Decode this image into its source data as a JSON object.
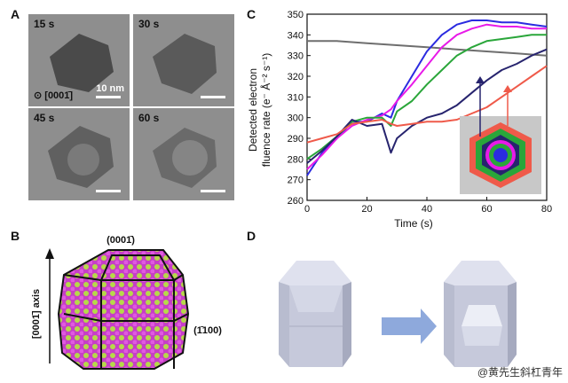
{
  "panels": {
    "a": {
      "label": "A",
      "frames": [
        {
          "time": "15 s"
        },
        {
          "time": "30 s"
        },
        {
          "time": "45 s"
        },
        {
          "time": "60 s"
        }
      ],
      "scale_bar": "10 nm",
      "zone_axis": "[0001̄]"
    },
    "b": {
      "label": "B",
      "top_facet": "(0001̄)",
      "side_facet": "(1̄100)",
      "axis_label": "[0001̄] axis"
    },
    "c": {
      "label": "C"
    },
    "d": {
      "label": "D"
    }
  },
  "chart_data": {
    "type": "line",
    "xlabel": "Time (s)",
    "ylabel_line1": "Detected electron",
    "ylabel_line2": "fluence rate (e⁻ Å⁻² s⁻¹)",
    "xlim": [
      0,
      80
    ],
    "ylim": [
      260,
      350
    ],
    "xticks": [
      0,
      20,
      40,
      60,
      80
    ],
    "yticks": [
      260,
      270,
      280,
      290,
      300,
      310,
      320,
      330,
      340,
      350
    ],
    "series": [
      {
        "name": "gray",
        "color": "#6e6e6e",
        "x": [
          0,
          10,
          20,
          30,
          40,
          50,
          60,
          70,
          80
        ],
        "y": [
          337,
          337,
          336,
          335,
          334,
          333,
          332,
          331,
          330
        ]
      },
      {
        "name": "blue",
        "color": "#2b2be0",
        "x": [
          0,
          5,
          10,
          15,
          20,
          25,
          28,
          30,
          35,
          40,
          45,
          50,
          55,
          60,
          65,
          70,
          75,
          80
        ],
        "y": [
          272,
          283,
          290,
          298,
          298,
          302,
          300,
          308,
          320,
          332,
          340,
          345,
          347,
          347,
          346,
          346,
          345,
          344
        ]
      },
      {
        "name": "magenta",
        "color": "#e81ae8",
        "x": [
          0,
          5,
          10,
          15,
          20,
          25,
          28,
          30,
          35,
          40,
          45,
          50,
          55,
          60,
          65,
          70,
          75,
          80
        ],
        "y": [
          275,
          282,
          290,
          296,
          299,
          301,
          304,
          308,
          316,
          325,
          334,
          340,
          343,
          345,
          344,
          344,
          343,
          343
        ]
      },
      {
        "name": "green",
        "color": "#2aa63a",
        "x": [
          0,
          5,
          10,
          15,
          20,
          25,
          28,
          30,
          35,
          40,
          45,
          50,
          55,
          60,
          65,
          70,
          75,
          80
        ],
        "y": [
          280,
          285,
          291,
          298,
          300,
          300,
          296,
          303,
          308,
          316,
          323,
          330,
          334,
          337,
          338,
          339,
          340,
          340
        ]
      },
      {
        "name": "navy",
        "color": "#27246e",
        "x": [
          0,
          5,
          10,
          15,
          20,
          25,
          28,
          30,
          35,
          40,
          45,
          50,
          55,
          60,
          65,
          70,
          75,
          80
        ],
        "y": [
          278,
          284,
          291,
          299,
          296,
          297,
          283,
          290,
          296,
          300,
          302,
          306,
          312,
          318,
          323,
          326,
          330,
          333
        ]
      },
      {
        "name": "red",
        "color": "#ef5a4a",
        "x": [
          0,
          5,
          10,
          15,
          20,
          25,
          28,
          30,
          35,
          40,
          45,
          50,
          55,
          60,
          65,
          70,
          75,
          80
        ],
        "y": [
          288,
          290,
          292,
          297,
          298,
          299,
          297,
          296,
          297,
          298,
          298,
          299,
          302,
          305,
          310,
          315,
          320,
          325
        ]
      }
    ]
  },
  "watermark": "@黄先生斜杠青年"
}
